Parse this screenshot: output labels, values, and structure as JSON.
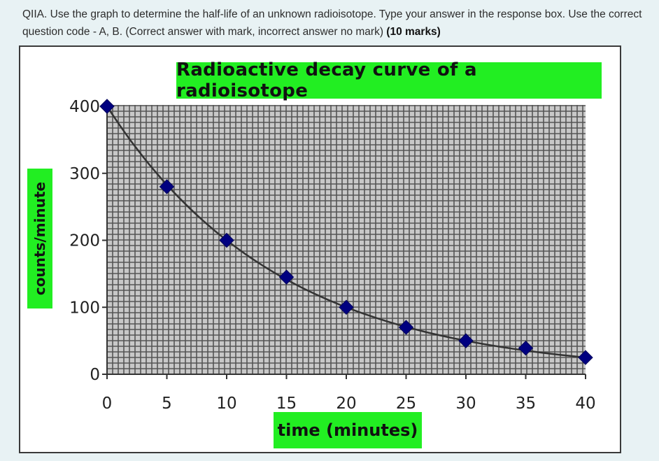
{
  "question": {
    "text": "QIIA. Use the graph to determine the half-life of an unknown radioisotope. Type your answer in the response box. Use the correct question code - A, B. (Correct answer with mark, incorrect answer no mark) ",
    "marks": "(10 marks)"
  },
  "colors": {
    "label_background": "#22ee22",
    "marker": "#000080",
    "grid": "#555555",
    "plot_background": "#c8c8c8"
  },
  "chart_data": {
    "type": "scatter",
    "title": "Radioactive decay curve of a radioisotope",
    "xlabel": "time (minutes)",
    "ylabel": "counts/minute",
    "x": [
      0,
      5,
      10,
      15,
      20,
      25,
      30,
      35,
      40
    ],
    "y": [
      400,
      280,
      200,
      145,
      100,
      70,
      50,
      39,
      25
    ],
    "xlim": [
      0,
      40
    ],
    "ylim": [
      0,
      400
    ],
    "x_ticks": [
      "0",
      "5",
      "10",
      "15",
      "20",
      "25",
      "30",
      "35",
      "40"
    ],
    "y_ticks": [
      "0",
      "100",
      "200",
      "300",
      "400"
    ],
    "grid": true,
    "trend_curve": "exponential decay",
    "marker": "diamond"
  }
}
